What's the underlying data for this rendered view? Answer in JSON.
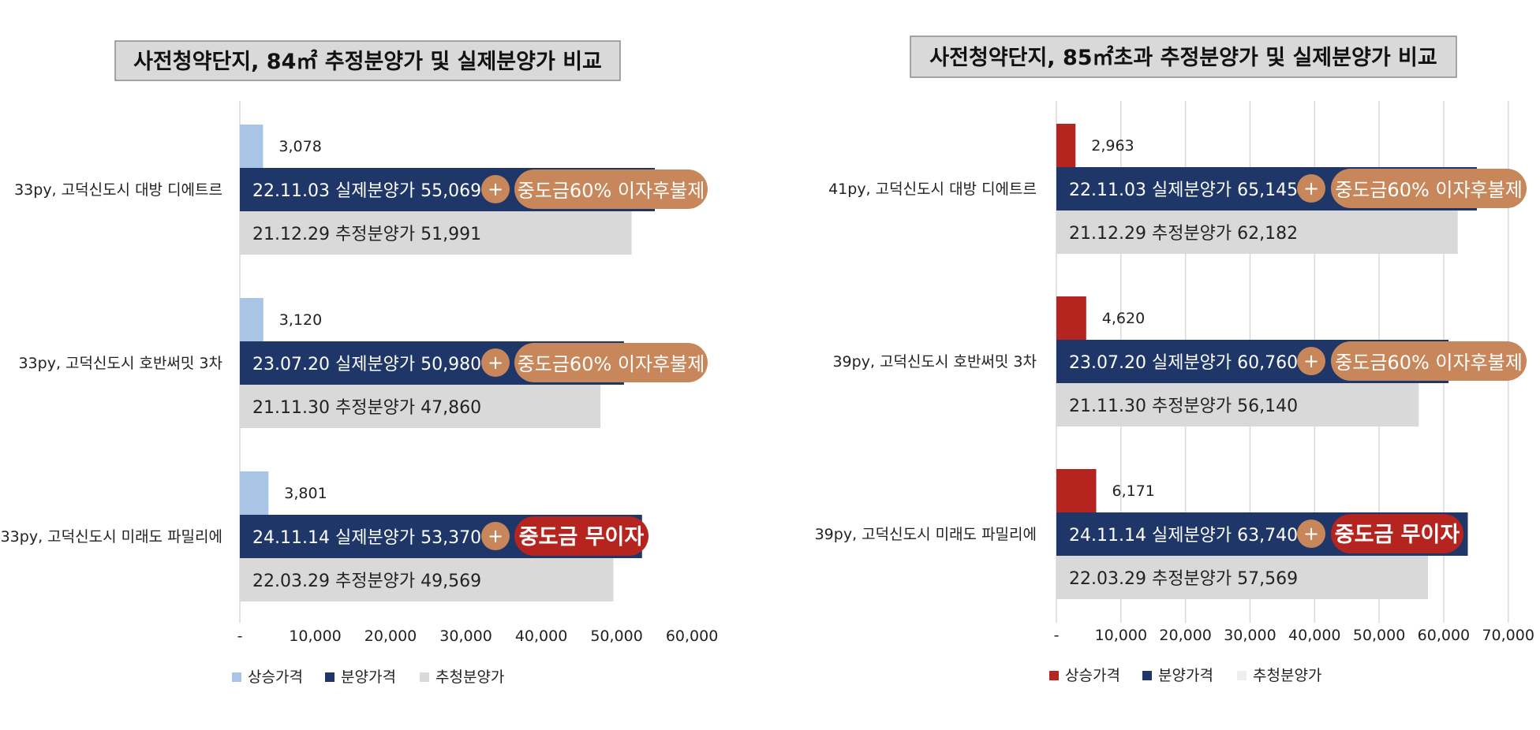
{
  "chart_data": [
    {
      "type": "bar",
      "orientation": "horizontal",
      "title": "사전청약단지, 84㎡ 추정분양가 및 실제분양가 비교",
      "categories": [
        "33py, 고덕신도시 대방 디에트르",
        "33py, 고덕신도시 호반써밋 3차",
        "33py, 고덕신도시 미래도 파밀리에"
      ],
      "series": [
        {
          "name": "상승가격",
          "values": [
            3078,
            3120,
            3801
          ],
          "color": "#a9c5e6",
          "labels": [
            "3,078",
            "3,120",
            "3,801"
          ]
        },
        {
          "name": "분양가격",
          "values": [
            55069,
            50980,
            53370
          ],
          "color": "#1f3669",
          "labels": [
            "22.11.03 실제분양가 55,069",
            "23.07.20 실제분양가 50,980",
            "24.11.14 실제분양가 53,370"
          ]
        },
        {
          "name": "추청분양가",
          "values": [
            51991,
            47860,
            49569
          ],
          "color": "#d9d9d9",
          "labels": [
            "21.12.29 추정분양가  51,991",
            "21.11.30 추정분양가  47,860",
            "22.03.29 추정분양가 49,569"
          ]
        }
      ],
      "callouts": [
        {
          "plus": "+",
          "text": "중도금60% 이자후불제",
          "color": "#c8875a"
        },
        {
          "plus": "+",
          "text": "중도금60% 이자후불제",
          "color": "#c8875a"
        },
        {
          "plus": "+",
          "text": "중도금 무이자",
          "color": "#b5241f"
        }
      ],
      "plus_color": "#c8875a",
      "xlim": [
        0,
        60000
      ],
      "xticks": [
        0,
        10000,
        20000,
        30000,
        40000,
        50000,
        60000
      ],
      "xtick_labels": [
        "-",
        "10,000",
        "20,000",
        "30,000",
        "40,000",
        "50,000",
        "60,000"
      ],
      "grid": false,
      "legend_position": "bottom-left"
    },
    {
      "type": "bar",
      "orientation": "horizontal",
      "title": "사전청약단지, 85㎡초과 추정분양가 및 실제분양가 비교",
      "categories": [
        "41py, 고덕신도시 대방 디에트르",
        "39py, 고덕신도시 호반써밋 3차",
        "39py, 고덕신도시 미래도 파밀리에"
      ],
      "series": [
        {
          "name": "상승가격",
          "values": [
            2963,
            4620,
            6171
          ],
          "color": "#b5241f",
          "labels": [
            "2,963",
            "4,620",
            "6,171"
          ]
        },
        {
          "name": "분양가격",
          "values": [
            65145,
            60760,
            63740
          ],
          "color": "#1f3669",
          "labels": [
            "22.11.03 실제분양가 65,145",
            "23.07.20 실제분양가 60,760",
            "24.11.14 실제분양가  63,740"
          ]
        },
        {
          "name": "추청분양가",
          "values": [
            62182,
            56140,
            57569
          ],
          "color": "#d9d9d9",
          "legend_color": "#eeeeee",
          "labels": [
            "21.12.29 추정분양가 62,182",
            "21.11.30 추정분양가  56,140",
            "22.03.29 추정분양가  57,569"
          ]
        }
      ],
      "callouts": [
        {
          "plus": "+",
          "text": "중도금60% 이자후불제",
          "color": "#c8875a"
        },
        {
          "plus": "+",
          "text": "중도금60% 이자후불제",
          "color": "#c8875a"
        },
        {
          "plus": "+",
          "text": "중도금 무이자",
          "color": "#b5241f"
        }
      ],
      "plus_color": "#c8875a",
      "xlim": [
        0,
        70000
      ],
      "xticks": [
        0,
        10000,
        20000,
        30000,
        40000,
        50000,
        60000,
        70000
      ],
      "xtick_labels": [
        "-",
        "10,000",
        "20,000",
        "30,000",
        "40,000",
        "50,000",
        "60,000",
        "70,000"
      ],
      "grid": true,
      "legend_position": "bottom-left"
    }
  ]
}
